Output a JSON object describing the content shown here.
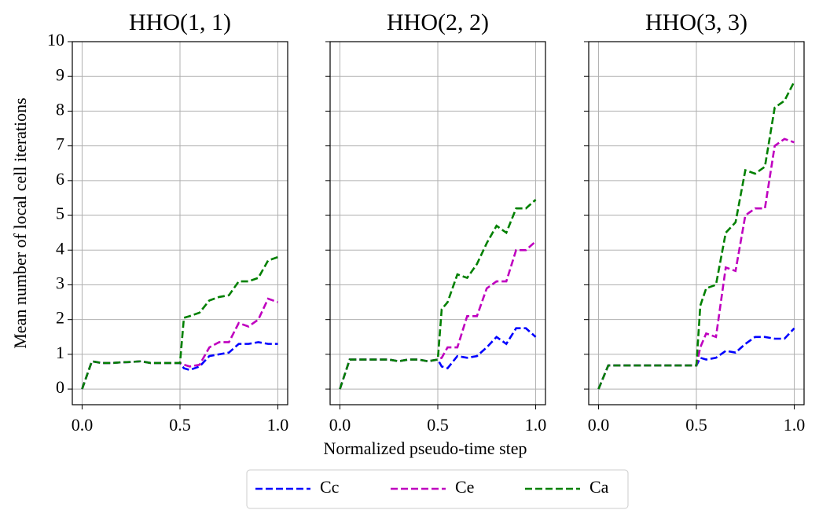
{
  "chart_data": [
    {
      "type": "line",
      "title": "HHO(1, 1)",
      "y_label": "Mean number of local cell iterations",
      "x": [
        0,
        0.05,
        0.1,
        0.15,
        0.2,
        0.25,
        0.3,
        0.35,
        0.4,
        0.45,
        0.5,
        0.52,
        0.55,
        0.6,
        0.65,
        0.7,
        0.75,
        0.8,
        0.85,
        0.9,
        0.95,
        1.0
      ],
      "xlim": [
        -0.05,
        1.05
      ],
      "ylim": [
        -0.45,
        10
      ],
      "xticks": [
        {
          "value": 0,
          "label": "0.0"
        },
        {
          "value": 0.5,
          "label": "0.5"
        },
        {
          "value": 1,
          "label": "1.0"
        }
      ],
      "yticks": [
        0,
        1,
        2,
        3,
        4,
        5,
        6,
        7,
        8,
        9,
        10
      ],
      "grid": true,
      "series": [
        {
          "name": "Cc",
          "color": "#0000ff",
          "values": [
            0,
            0.8,
            0.75,
            0.75,
            0.77,
            0.78,
            0.8,
            0.75,
            0.75,
            0.75,
            0.75,
            0.6,
            0.55,
            0.65,
            0.95,
            1.0,
            1.05,
            1.3,
            1.3,
            1.35,
            1.3,
            1.3
          ]
        },
        {
          "name": "Ce",
          "color": "#bf00bf",
          "values": [
            0,
            0.8,
            0.75,
            0.75,
            0.77,
            0.78,
            0.8,
            0.75,
            0.75,
            0.75,
            0.75,
            0.7,
            0.65,
            0.7,
            1.2,
            1.35,
            1.35,
            1.9,
            1.8,
            2.0,
            2.6,
            2.5
          ]
        },
        {
          "name": "Ca",
          "color": "#008000",
          "values": [
            0,
            0.8,
            0.75,
            0.75,
            0.77,
            0.78,
            0.8,
            0.75,
            0.75,
            0.75,
            0.75,
            2.05,
            2.1,
            2.2,
            2.55,
            2.65,
            2.7,
            3.1,
            3.1,
            3.2,
            3.7,
            3.8
          ]
        }
      ]
    },
    {
      "type": "line",
      "title": "HHO(2, 2)",
      "x_label": "Normalized pseudo-time step",
      "x": [
        0,
        0.05,
        0.1,
        0.15,
        0.2,
        0.25,
        0.3,
        0.35,
        0.4,
        0.45,
        0.5,
        0.52,
        0.55,
        0.6,
        0.65,
        0.7,
        0.75,
        0.8,
        0.85,
        0.9,
        0.95,
        1.0
      ],
      "xlim": [
        -0.05,
        1.05
      ],
      "ylim": [
        -0.45,
        10
      ],
      "xticks": [
        {
          "value": 0,
          "label": "0.0"
        },
        {
          "value": 0.5,
          "label": "0.5"
        },
        {
          "value": 1,
          "label": "1.0"
        }
      ],
      "grid": true,
      "series": [
        {
          "color": "#0000ff",
          "values": [
            0,
            0.85,
            0.85,
            0.85,
            0.85,
            0.85,
            0.8,
            0.85,
            0.85,
            0.8,
            0.85,
            0.65,
            0.6,
            0.95,
            0.9,
            0.95,
            1.2,
            1.5,
            1.3,
            1.75,
            1.75,
            1.5
          ]
        },
        {
          "color": "#bf00bf",
          "values": [
            0,
            0.85,
            0.85,
            0.85,
            0.85,
            0.85,
            0.8,
            0.85,
            0.85,
            0.8,
            0.85,
            0.9,
            1.2,
            1.2,
            2.1,
            2.1,
            2.9,
            3.1,
            3.1,
            4.0,
            4.0,
            4.25
          ]
        },
        {
          "color": "#008000",
          "values": [
            0,
            0.85,
            0.85,
            0.85,
            0.85,
            0.85,
            0.8,
            0.85,
            0.85,
            0.8,
            0.85,
            2.3,
            2.5,
            3.3,
            3.2,
            3.6,
            4.2,
            4.7,
            4.5,
            5.2,
            5.2,
            5.45
          ]
        }
      ]
    },
    {
      "type": "line",
      "title": "HHO(3, 3)",
      "x": [
        0,
        0.05,
        0.1,
        0.15,
        0.2,
        0.25,
        0.3,
        0.35,
        0.4,
        0.45,
        0.5,
        0.52,
        0.55,
        0.6,
        0.65,
        0.7,
        0.75,
        0.8,
        0.85,
        0.9,
        0.95,
        1.0
      ],
      "xlim": [
        -0.05,
        1.05
      ],
      "ylim": [
        -0.45,
        10
      ],
      "xticks": [
        {
          "value": 0,
          "label": "0.0"
        },
        {
          "value": 0.5,
          "label": "0.5"
        },
        {
          "value": 1,
          "label": "1.0"
        }
      ],
      "grid": true,
      "series": [
        {
          "color": "#0000ff",
          "values": [
            0,
            0.68,
            0.68,
            0.68,
            0.68,
            0.68,
            0.68,
            0.68,
            0.68,
            0.68,
            0.68,
            0.9,
            0.85,
            0.9,
            1.1,
            1.05,
            1.3,
            1.5,
            1.5,
            1.45,
            1.45,
            1.75
          ]
        },
        {
          "color": "#bf00bf",
          "values": [
            0,
            0.68,
            0.68,
            0.68,
            0.68,
            0.68,
            0.68,
            0.68,
            0.68,
            0.68,
            0.68,
            1.2,
            1.6,
            1.5,
            3.5,
            3.4,
            5.0,
            5.2,
            5.2,
            7.0,
            7.2,
            7.1
          ]
        },
        {
          "color": "#008000",
          "values": [
            0,
            0.68,
            0.68,
            0.68,
            0.68,
            0.68,
            0.68,
            0.68,
            0.68,
            0.68,
            0.68,
            2.4,
            2.9,
            3.0,
            4.5,
            4.8,
            6.3,
            6.2,
            6.4,
            8.1,
            8.3,
            8.85
          ]
        }
      ]
    }
  ]
}
